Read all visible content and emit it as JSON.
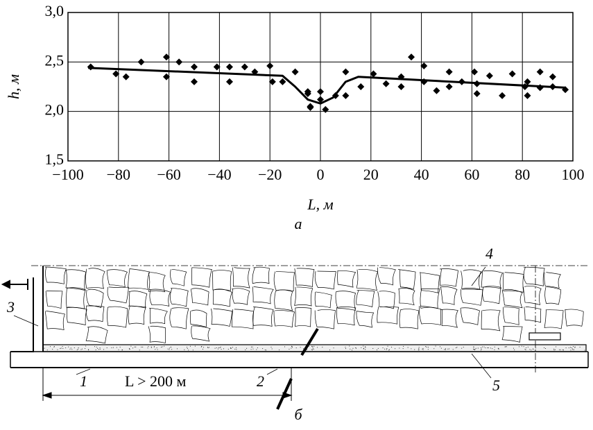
{
  "chart_data": {
    "type": "scatter",
    "x_label": "L, м",
    "y_label": "h, м",
    "caption": "а",
    "xlim": [
      -100,
      100
    ],
    "ylim": [
      1.5,
      3.0
    ],
    "xticks": [
      {
        "value": -100,
        "label": "−100"
      },
      {
        "value": -80,
        "label": "−80"
      },
      {
        "value": -60,
        "label": "−60"
      },
      {
        "value": -40,
        "label": "−40"
      },
      {
        "value": -20,
        "label": "−20"
      },
      0,
      20,
      40,
      60,
      80,
      100
    ],
    "yticks": [
      {
        "value": 1.5,
        "label": "1,5"
      },
      {
        "value": 2.0,
        "label": "2,0"
      },
      {
        "value": 2.5,
        "label": "2,5"
      },
      {
        "value": 3.0,
        "label": "3,0"
      }
    ],
    "grid": true,
    "series": [
      {
        "color": "#000000",
        "x": [
          -91,
          -81,
          -77,
          -71,
          -61,
          -61,
          -56,
          -50,
          -50,
          -41,
          -36,
          -36,
          -30,
          -26,
          -20,
          -19,
          -15,
          -10,
          -5,
          -5,
          -4,
          -4,
          0,
          0,
          2,
          6,
          10,
          10,
          16,
          21,
          26,
          32,
          32,
          36,
          41,
          41,
          46,
          51,
          51,
          56,
          61,
          62,
          62,
          67,
          72,
          76,
          81,
          82,
          82,
          87,
          87,
          92,
          92,
          97
        ],
        "values": [
          2.45,
          2.38,
          2.35,
          2.5,
          2.55,
          2.35,
          2.5,
          2.45,
          2.3,
          2.45,
          2.45,
          2.3,
          2.45,
          2.4,
          2.46,
          2.3,
          2.3,
          2.4,
          2.2,
          2.18,
          2.05,
          2.04,
          2.2,
          2.12,
          2.02,
          2.16,
          2.4,
          2.16,
          2.25,
          2.38,
          2.28,
          2.35,
          2.25,
          2.55,
          2.46,
          2.3,
          2.21,
          2.4,
          2.25,
          2.3,
          2.4,
          2.28,
          2.18,
          2.36,
          2.16,
          2.38,
          2.25,
          2.3,
          2.16,
          2.4,
          2.24,
          2.35,
          2.25,
          2.22
        ]
      },
      {
        "type": "line",
        "color": "#000000",
        "x": [
          -92,
          -15,
          -10,
          -5,
          0,
          5,
          10,
          15,
          97
        ],
        "values": [
          2.44,
          2.36,
          2.25,
          2.12,
          2.08,
          2.14,
          2.3,
          2.35,
          2.24
        ]
      }
    ]
  },
  "diagram": {
    "labels": [
      "1",
      "2",
      "3",
      "4",
      "5"
    ],
    "dimension": "L > 200 м",
    "caption": "б"
  }
}
